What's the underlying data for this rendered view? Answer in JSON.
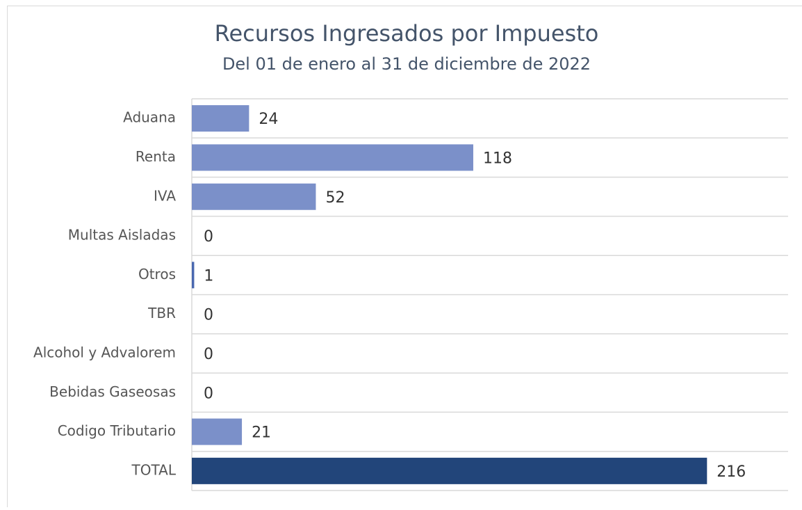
{
  "chart_data": {
    "type": "bar",
    "orientation": "horizontal",
    "title": "Recursos Ingresados por Impuesto",
    "subtitle": "Del 01 de enero al 31 de diciembre de 2022",
    "categories": [
      "Aduana",
      "Renta",
      "IVA",
      "Multas Aisladas",
      "Otros",
      "TBR",
      "Alcohol y Advalorem",
      "Bebidas Gaseosas",
      "Codigo Tributario",
      "TOTAL"
    ],
    "values": [
      24,
      118,
      52,
      0,
      1,
      0,
      0,
      0,
      21,
      216
    ],
    "colors": [
      "#7b90c9",
      "#7b90c9",
      "#7b90c9",
      "#7b90c9",
      "#4a68b0",
      "#7b90c9",
      "#7b90c9",
      "#7b90c9",
      "#7b90c9",
      "#22457a"
    ],
    "xlim": [
      0,
      250
    ]
  }
}
